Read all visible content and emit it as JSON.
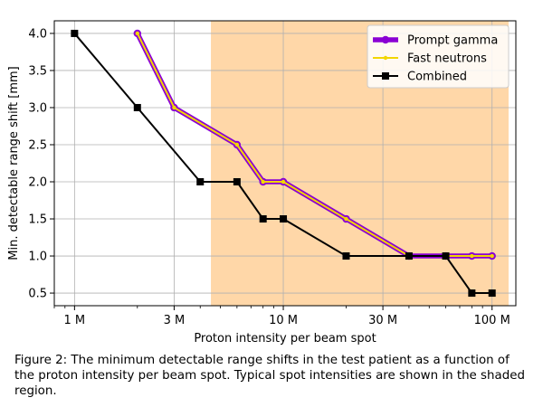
{
  "chart_data": {
    "type": "line",
    "xscale": "log",
    "xlabel": "Proton intensity per beam spot",
    "ylabel": "Min. detectable range shift [mm]",
    "xlim": [
      800000,
      130000000
    ],
    "ylim": [
      0.33,
      4.17
    ],
    "xticks": [
      {
        "value": 1000000,
        "label": "1 M"
      },
      {
        "value": 3000000,
        "label": "3 M"
      },
      {
        "value": 10000000,
        "label": "10 M"
      },
      {
        "value": 30000000,
        "label": "30 M"
      },
      {
        "value": 100000000,
        "label": "100 M"
      }
    ],
    "yticks": [
      {
        "value": 0.5,
        "label": "0.5"
      },
      {
        "value": 1.0,
        "label": "1.0"
      },
      {
        "value": 1.5,
        "label": "1.5"
      },
      {
        "value": 2.0,
        "label": "2.0"
      },
      {
        "value": 2.5,
        "label": "2.5"
      },
      {
        "value": 3.0,
        "label": "3.0"
      },
      {
        "value": 3.5,
        "label": "3.5"
      },
      {
        "value": 4.0,
        "label": "4.0"
      }
    ],
    "grid": true,
    "legend_position": "top-right",
    "shaded_region": {
      "x": [
        4500000,
        120000000
      ],
      "color": "#ffd7a8"
    },
    "series": [
      {
        "name": "Prompt gamma",
        "color": "#8a00d4",
        "marker": "circle",
        "x": [
          2000000,
          3000000,
          6000000,
          8000000,
          10000000,
          20000000,
          40000000,
          60000000,
          80000000,
          100000000
        ],
        "y": [
          4.0,
          3.0,
          2.5,
          2.0,
          2.0,
          1.5,
          1.0,
          1.0,
          1.0,
          1.0
        ]
      },
      {
        "name": "Fast neutrons",
        "color": "#f2d600",
        "marker": "dot",
        "x": [
          2000000,
          3000000,
          6000000,
          8000000,
          10000000,
          20000000,
          40000000,
          60000000,
          80000000,
          100000000
        ],
        "y": [
          4.0,
          3.0,
          2.5,
          2.0,
          2.0,
          1.5,
          1.0,
          1.0,
          1.0,
          1.0
        ]
      },
      {
        "name": "Combined",
        "color": "#000000",
        "marker": "square",
        "x": [
          1000000,
          2000000,
          4000000,
          6000000,
          8000000,
          10000000,
          20000000,
          40000000,
          60000000,
          80000000,
          100000000
        ],
        "y": [
          4.0,
          3.0,
          2.0,
          2.0,
          1.5,
          1.5,
          1.0,
          1.0,
          1.0,
          0.5,
          0.5
        ]
      }
    ]
  },
  "caption": "Figure 2: The minimum detectable range shifts in the test patient as a function of the proton intensity per beam spot. Typical spot intensities are shown in the shaded region."
}
